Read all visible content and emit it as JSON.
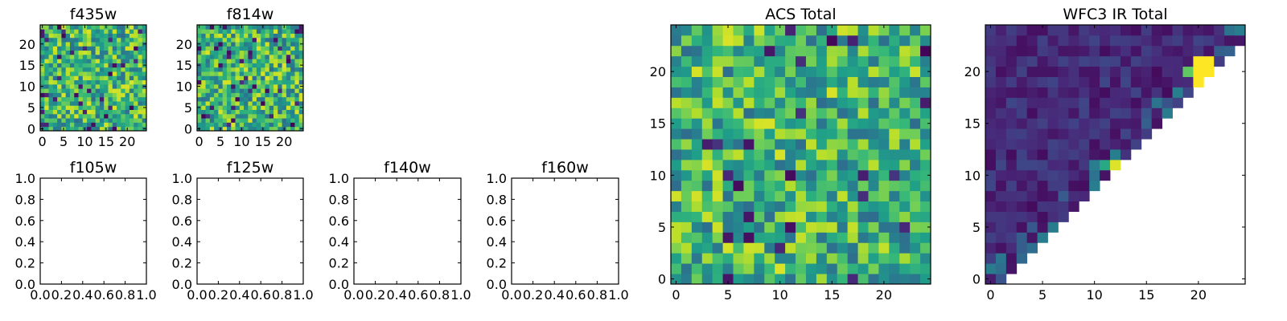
{
  "figure": {
    "panels": [
      {
        "id": "f435w",
        "title": "f435w",
        "kind": "heatmap",
        "grid": 25,
        "colormap": "viridis",
        "xticks": [
          0,
          5,
          10,
          15,
          20
        ],
        "yticks": [
          0,
          5,
          10,
          15,
          20
        ],
        "xlim": [
          -0.5,
          24.5
        ],
        "ylim": [
          -0.5,
          24.5
        ]
      },
      {
        "id": "f814w",
        "title": "f814w",
        "kind": "heatmap",
        "grid": 25,
        "colormap": "viridis",
        "xticks": [
          0,
          5,
          10,
          15,
          20
        ],
        "yticks": [
          0,
          5,
          10,
          15,
          20
        ],
        "xlim": [
          -0.5,
          24.5
        ],
        "ylim": [
          -0.5,
          24.5
        ]
      },
      {
        "id": "f105w",
        "title": "f105w",
        "kind": "empty",
        "xlim": [
          0,
          1
        ],
        "ylim": [
          0,
          1
        ],
        "xtick_labels": [
          "0.0",
          "0.2",
          "0.4",
          "0.6",
          "0.8",
          "1.0"
        ],
        "ytick_labels": [
          "0.0",
          "0.2",
          "0.4",
          "0.6",
          "0.8",
          "1.0"
        ]
      },
      {
        "id": "f125w",
        "title": "f125w",
        "kind": "empty",
        "xlim": [
          0,
          1
        ],
        "ylim": [
          0,
          1
        ],
        "xtick_labels": [
          "0.0",
          "0.2",
          "0.4",
          "0.6",
          "0.8",
          "1.0"
        ],
        "ytick_labels": [
          "0.0",
          "0.2",
          "0.4",
          "0.6",
          "0.8",
          "1.0"
        ]
      },
      {
        "id": "f140w",
        "title": "f140w",
        "kind": "empty",
        "xlim": [
          0,
          1
        ],
        "ylim": [
          0,
          1
        ],
        "xtick_labels": [
          "0.0",
          "0.2",
          "0.4",
          "0.6",
          "0.8",
          "1.0"
        ],
        "ytick_labels": [
          "0.0",
          "0.2",
          "0.4",
          "0.6",
          "0.8",
          "1.0"
        ]
      },
      {
        "id": "f160w",
        "title": "f160w",
        "kind": "empty",
        "xlim": [
          0,
          1
        ],
        "ylim": [
          0,
          1
        ],
        "xtick_labels": [
          "0.0",
          "0.2",
          "0.4",
          "0.6",
          "0.8",
          "1.0"
        ],
        "ytick_labels": [
          "0.0",
          "0.2",
          "0.4",
          "0.6",
          "0.8",
          "1.0"
        ]
      },
      {
        "id": "acs-total",
        "title": "ACS Total",
        "kind": "heatmap",
        "grid": 25,
        "colormap": "viridis",
        "xticks": [
          0,
          5,
          10,
          15,
          20
        ],
        "yticks": [
          0,
          5,
          10,
          15,
          20
        ],
        "xlim": [
          -0.5,
          24.5
        ],
        "ylim": [
          -0.5,
          24.5
        ]
      },
      {
        "id": "wfc3-ir-total",
        "title": "WFC3 IR Total",
        "kind": "heatmap-triangle",
        "grid": 25,
        "colormap": "viridis",
        "xticks": [
          0,
          5,
          10,
          15,
          20
        ],
        "yticks": [
          0,
          5,
          10,
          15,
          20
        ],
        "xlim": [
          -0.5,
          24.5
        ],
        "ylim": [
          -0.5,
          24.5
        ]
      }
    ]
  },
  "chart_data": [
    {
      "type": "heatmap",
      "title": "f435w",
      "grid": [
        25,
        25
      ],
      "colormap": "viridis",
      "value_range": [
        0,
        1
      ]
    },
    {
      "type": "heatmap",
      "title": "f814w",
      "grid": [
        25,
        25
      ],
      "colormap": "viridis",
      "value_range": [
        0,
        1
      ]
    },
    {
      "type": "scatter",
      "title": "f105w",
      "x": [],
      "y": [],
      "xlim": [
        0,
        1
      ],
      "ylim": [
        0,
        1
      ]
    },
    {
      "type": "scatter",
      "title": "f125w",
      "x": [],
      "y": [],
      "xlim": [
        0,
        1
      ],
      "ylim": [
        0,
        1
      ]
    },
    {
      "type": "scatter",
      "title": "f140w",
      "x": [],
      "y": [],
      "xlim": [
        0,
        1
      ],
      "ylim": [
        0,
        1
      ]
    },
    {
      "type": "scatter",
      "title": "f160w",
      "x": [],
      "y": [],
      "xlim": [
        0,
        1
      ],
      "ylim": [
        0,
        1
      ]
    },
    {
      "type": "heatmap",
      "title": "ACS Total",
      "grid": [
        25,
        25
      ],
      "colormap": "viridis",
      "value_range": [
        0,
        1
      ]
    },
    {
      "type": "heatmap",
      "title": "WFC3 IR Total",
      "grid": [
        25,
        25
      ],
      "colormap": "viridis",
      "value_range": [
        0,
        1
      ],
      "mask": "cells with row < column are empty (white upper triangle region below diagonal)",
      "hotspot": {
        "x": [
          20,
          21
        ],
        "y": [
          19,
          21
        ],
        "level": 1.0
      }
    }
  ]
}
